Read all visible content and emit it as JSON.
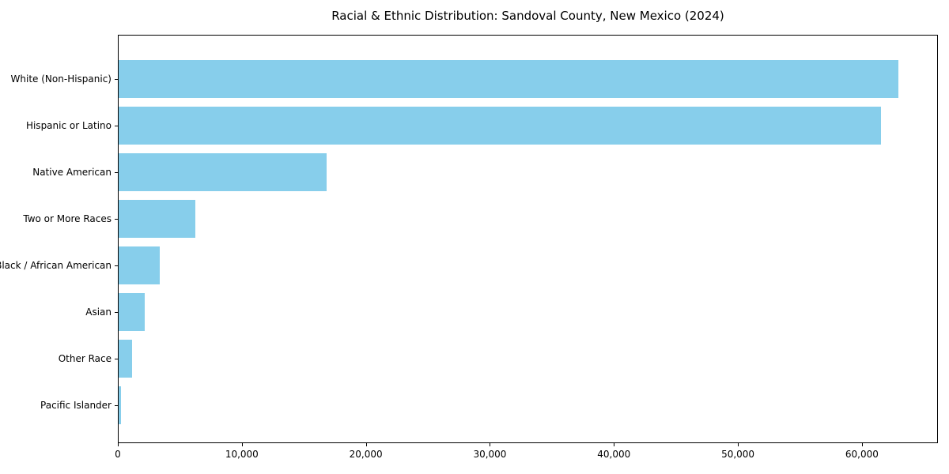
{
  "chart_data": {
    "type": "bar",
    "orientation": "horizontal",
    "title": "Racial & Ethnic Distribution: Sandoval County, New Mexico (2024)",
    "categories": [
      "White (Non-Hispanic)",
      "Hispanic or Latino",
      "Native American",
      "Two or More Races",
      "Black / African American",
      "Asian",
      "Other Race",
      "Pacific Islander"
    ],
    "values": [
      62900,
      61500,
      16800,
      6200,
      3300,
      2100,
      1100,
      200
    ],
    "xlabel": "",
    "ylabel": "",
    "xlim": [
      0,
      66000
    ],
    "xticks": [
      0,
      10000,
      20000,
      30000,
      40000,
      50000,
      60000
    ],
    "xtick_labels": [
      "0",
      "10,000",
      "20,000",
      "30,000",
      "40,000",
      "50,000",
      "60,000"
    ],
    "bar_color": "#87CEEB",
    "grid": false,
    "legend": null,
    "background_color": "#ffffff",
    "spine_color": "#000000"
  }
}
